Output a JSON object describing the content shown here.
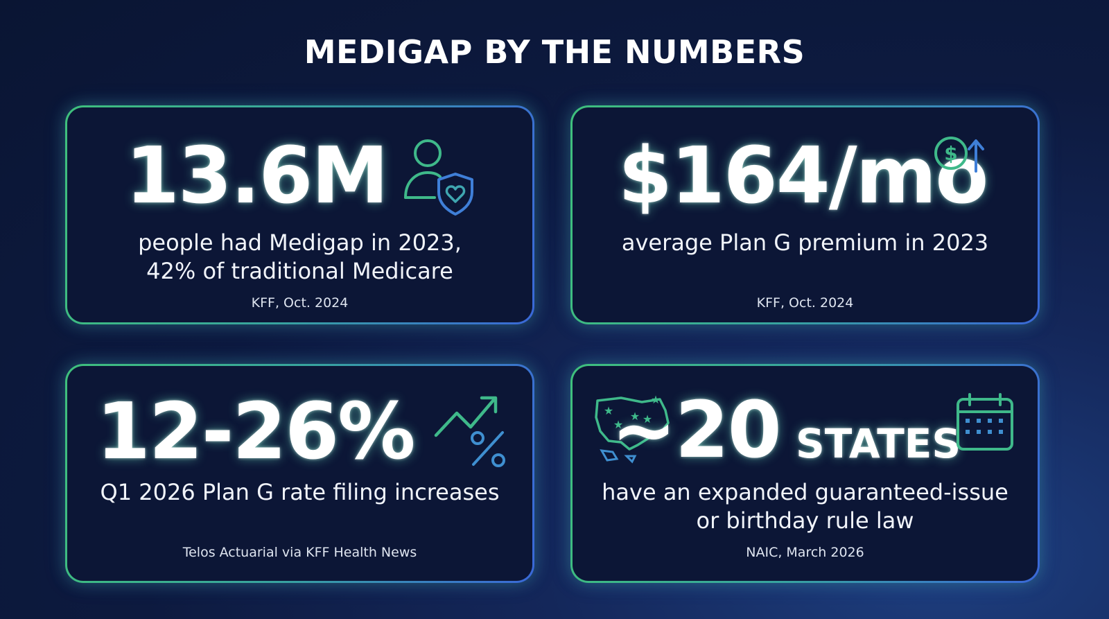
{
  "title": "MEDIGAP BY THE NUMBERS",
  "colors": {
    "background": "#0d1a3f",
    "card_background": "#0c1636",
    "accent_green": "#3fc07c",
    "accent_blue": "#3a68d8",
    "text": "#ffffff"
  },
  "cards": [
    {
      "stat": "13.6M",
      "description_line1": "people had Medigap in 2023,",
      "description_line2": "42% of traditional Medicare",
      "source": "KFF, Oct. 2024",
      "icon": "person-shield-heart-icon"
    },
    {
      "stat": "$164/mo",
      "description_line1": "average Plan G premium in 2023",
      "source": "KFF, Oct. 2024",
      "icon": "dollar-up-arrow-icon"
    },
    {
      "stat": "12-26%",
      "description_line1": "Q1 2026 Plan G rate filing increases",
      "source": "Telos Actuarial via KFF Health News",
      "icon": "trend-up-percent-icon"
    },
    {
      "stat": "~20",
      "stat_suffix": "STATES",
      "description_line1": "have an expanded guaranteed-issue",
      "description_line2": "or birthday rule law",
      "source": "NAIC, March 2026",
      "icon": "us-map-stars-icon",
      "icon2": "calendar-icon"
    }
  ]
}
